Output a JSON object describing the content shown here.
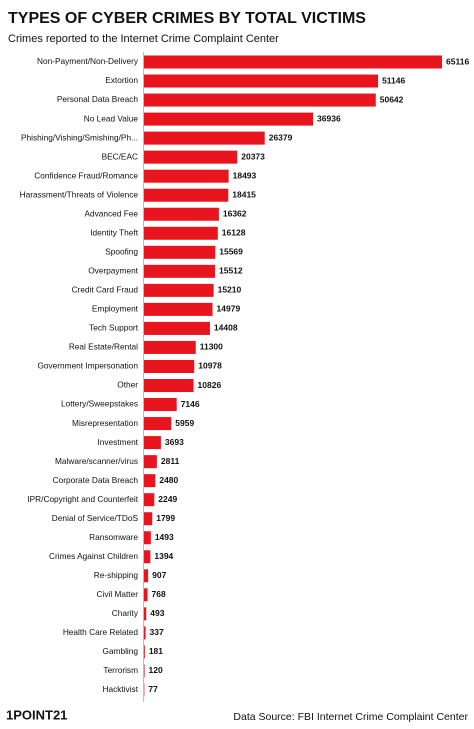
{
  "chart_data": {
    "type": "bar",
    "orientation": "horizontal",
    "title": "TYPES OF CYBER CRIMES BY TOTAL VICTIMS",
    "subtitle": "Crimes reported to the Internet Crime Complaint Center",
    "categories": [
      "Non-Payment/Non-Delivery",
      "Extortion",
      "Personal Data Breach",
      "No Lead Value",
      "Phishing/Vishing/Smishing/Ph...",
      "BEC/EAC",
      "Confidence Fraud/Romance",
      "Harassment/Threats of Violence",
      "Advanced Fee",
      "Identity Theft",
      "Spoofing",
      "Overpayment",
      "Credit Card Fraud",
      "Employment",
      "Tech Support",
      "Real Estate/Rental",
      "Government Impersonation",
      "Other",
      "Lottery/Sweepstakes",
      "Misrepresentation",
      "Investment",
      "Malware/scanner/virus",
      "Corporate Data Breach",
      "IPR/Copyright and Counterfeit",
      "Denial of Service/TDoS",
      "Ransomware",
      "Crimes Against Children",
      "Re-shipping",
      "Civil Matter",
      "Charity",
      "Health Care Related",
      "Gambling",
      "Terrorism",
      "Hacktivist"
    ],
    "values": [
      65116,
      51146,
      50642,
      36936,
      26379,
      20373,
      18493,
      18415,
      16362,
      16128,
      15569,
      15512,
      15210,
      14979,
      14408,
      11300,
      10978,
      10826,
      7146,
      5959,
      3693,
      2811,
      2480,
      2249,
      1799,
      1493,
      1394,
      907,
      768,
      493,
      337,
      181,
      120,
      77
    ],
    "color": "#e8141e",
    "source": "Data Source: FBI Internet Crime Complaint Center",
    "brand": "1POINT21"
  }
}
